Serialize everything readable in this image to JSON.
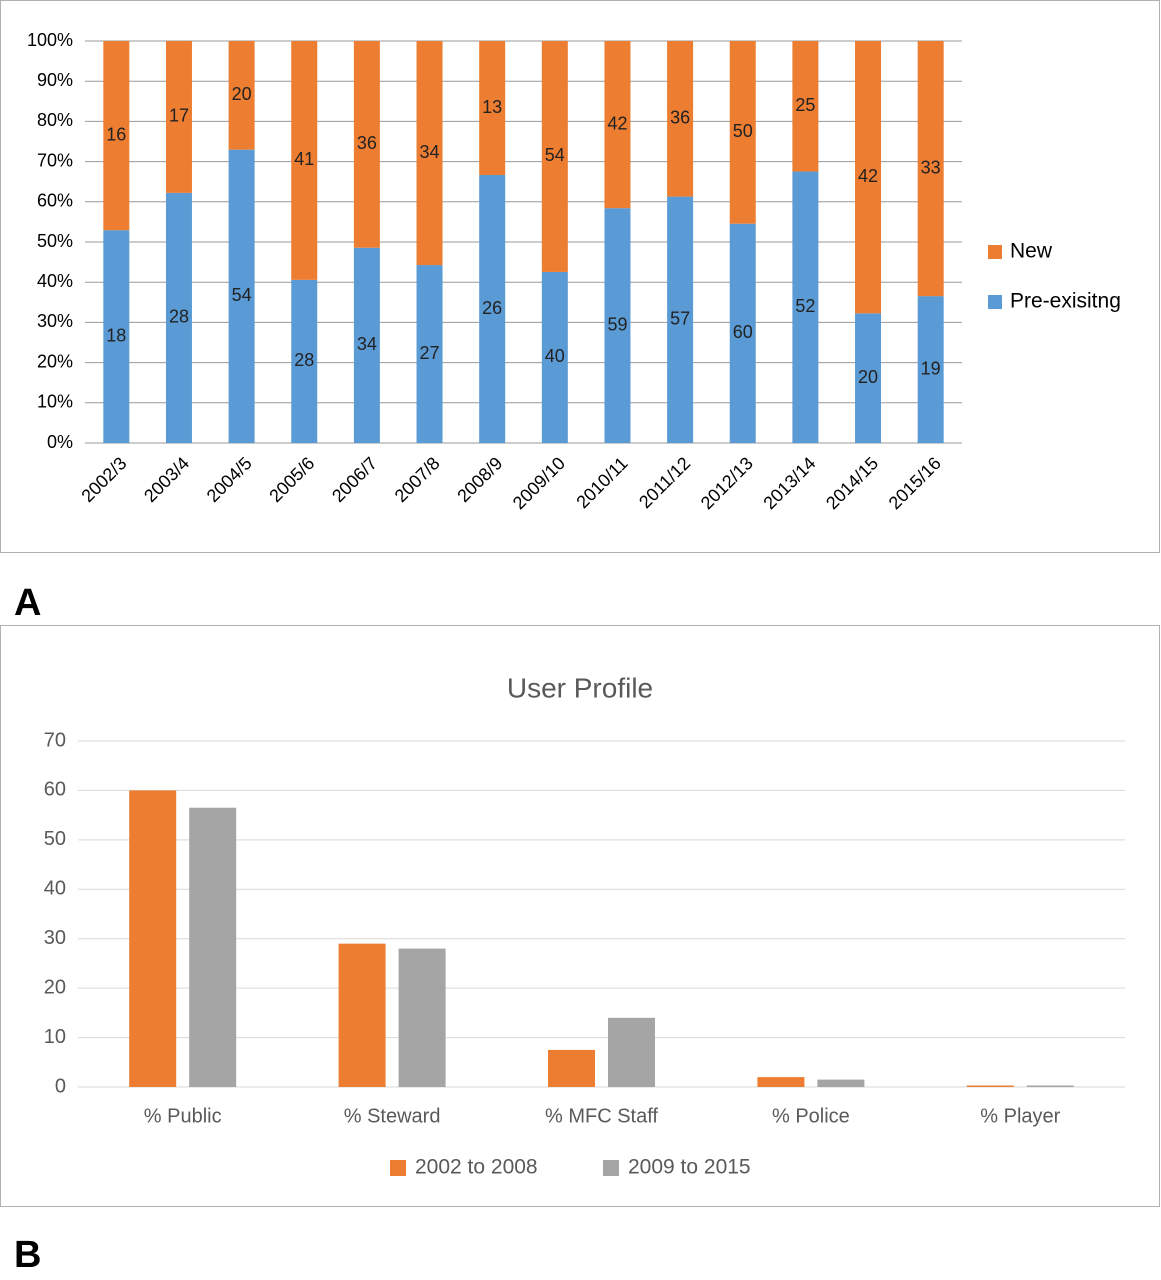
{
  "chart_data": [
    {
      "type": "bar",
      "stacked": "percent",
      "panel": "A",
      "categories": [
        "2002/3",
        "2003/4",
        "2004/5",
        "2005/6",
        "2006/7",
        "2007/8",
        "2008/9",
        "2009/10",
        "2010/11",
        "2011/12",
        "2012/13",
        "2013/14",
        "2014/15",
        "2015/16"
      ],
      "series": [
        {
          "name": "Pre-exisitng",
          "color": "#5b9bd5",
          "values": [
            18,
            28,
            54,
            28,
            34,
            27,
            26,
            40,
            59,
            57,
            60,
            52,
            20,
            19
          ]
        },
        {
          "name": "New",
          "color": "#ed7d31",
          "values": [
            16,
            17,
            20,
            41,
            36,
            34,
            13,
            54,
            42,
            36,
            50,
            25,
            42,
            33
          ]
        }
      ],
      "ylim": [
        0,
        100
      ],
      "yticks": [
        {
          "value": 0,
          "label": "0%"
        },
        {
          "value": 10,
          "label": "10%"
        },
        {
          "value": 20,
          "label": "20%"
        },
        {
          "value": 30,
          "label": "30%"
        },
        {
          "value": 40,
          "label": "40%"
        },
        {
          "value": 50,
          "label": "50%"
        },
        {
          "value": 60,
          "label": "60%"
        },
        {
          "value": 70,
          "label": "70%"
        },
        {
          "value": 80,
          "label": "80%"
        },
        {
          "value": 90,
          "label": "90%"
        },
        {
          "value": 100,
          "label": "100%"
        }
      ],
      "grid": true,
      "legend": "right"
    },
    {
      "type": "bar",
      "title": "User Profile",
      "panel": "B",
      "categories": [
        "% Public",
        "% Steward",
        "% MFC Staff",
        "% Police",
        "% Player"
      ],
      "series": [
        {
          "name": "2002 to 2008",
          "color": "#ed7d31",
          "values": [
            60,
            29,
            7.5,
            2,
            0.3
          ]
        },
        {
          "name": "2009 to 2015",
          "color": "#a5a5a5",
          "values": [
            56.5,
            28,
            14,
            1.5,
            0.3
          ]
        }
      ],
      "ylim": [
        0,
        70
      ],
      "yticks": [
        0,
        10,
        20,
        30,
        40,
        50,
        60,
        70
      ],
      "grid": true,
      "legend": "bottom"
    }
  ]
}
